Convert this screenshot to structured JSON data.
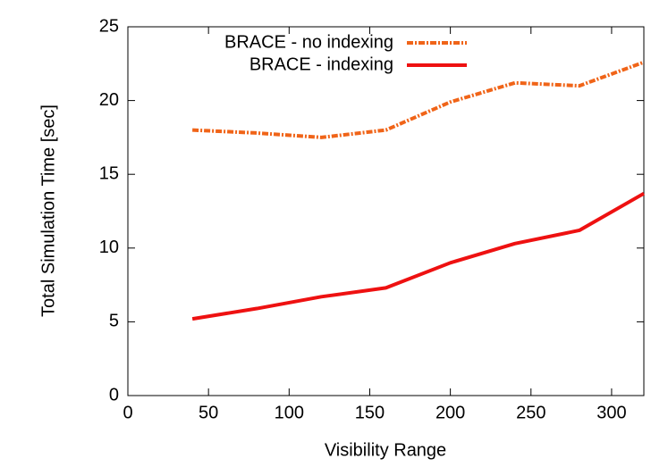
{
  "chart_data": {
    "type": "line",
    "x_label": "Visibility Range",
    "y_label": "Total Simulation Time [sec]",
    "x": [
      40,
      80,
      120,
      160,
      200,
      240,
      280,
      320
    ],
    "series": [
      {
        "name": "BRACE - no indexing",
        "color": "#f06418",
        "dashed": true,
        "values": [
          18.0,
          17.8,
          17.5,
          18.0,
          19.9,
          21.2,
          21.0,
          22.6
        ]
      },
      {
        "name": "BRACE - indexing",
        "color": "#ee1111",
        "dashed": false,
        "values": [
          5.2,
          5.9,
          6.7,
          7.3,
          9.0,
          10.3,
          11.2,
          13.7
        ]
      }
    ],
    "xlim": [
      0,
      320
    ],
    "xticks": [
      0,
      50,
      100,
      150,
      200,
      250,
      300
    ],
    "ylim": [
      0,
      25
    ],
    "yticks": [
      0,
      5,
      10,
      15,
      20,
      25
    ],
    "grid": false,
    "legend": "top"
  }
}
